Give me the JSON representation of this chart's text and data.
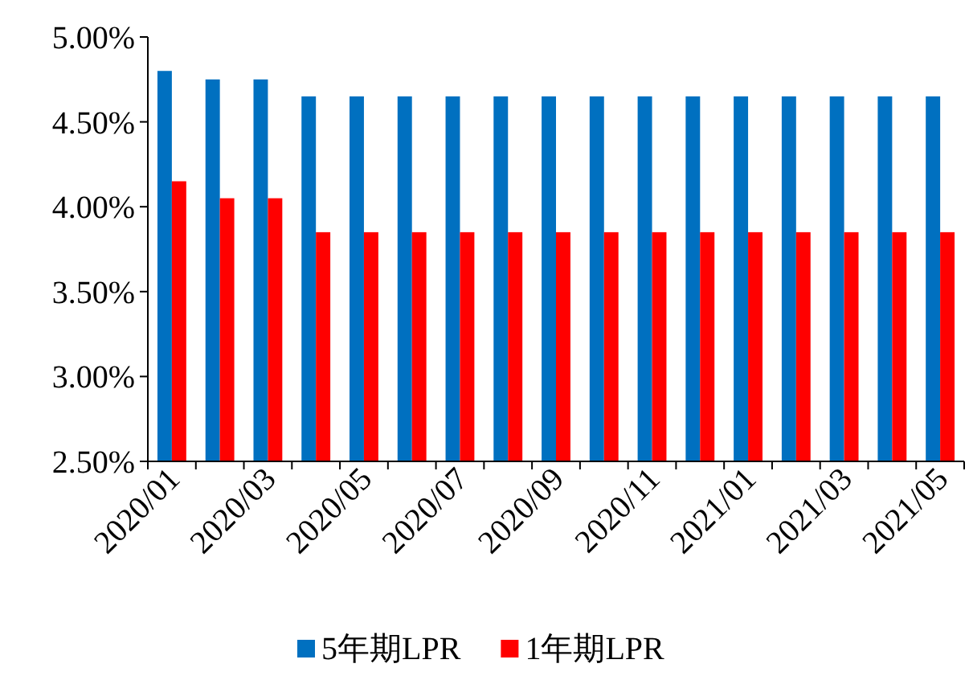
{
  "chart_data": {
    "type": "bar",
    "categories": [
      "2020/01",
      null,
      "2020/03",
      null,
      "2020/05",
      null,
      "2020/07",
      null,
      "2020/09",
      null,
      "2020/11",
      null,
      "2021/01",
      null,
      "2021/03",
      null,
      "2021/05"
    ],
    "series": [
      {
        "name": "5年期LPR",
        "color": "#0070c0",
        "values": [
          4.8,
          4.75,
          4.75,
          4.65,
          4.65,
          4.65,
          4.65,
          4.65,
          4.65,
          4.65,
          4.65,
          4.65,
          4.65,
          4.65,
          4.65,
          4.65,
          4.65
        ]
      },
      {
        "name": "1年期LPR",
        "color": "#ff0000",
        "values": [
          4.15,
          4.05,
          4.05,
          3.85,
          3.85,
          3.85,
          3.85,
          3.85,
          3.85,
          3.85,
          3.85,
          3.85,
          3.85,
          3.85,
          3.85,
          3.85,
          3.85
        ]
      }
    ],
    "ylim": [
      2.5,
      5.0
    ],
    "yticks": [
      {
        "value": 2.5,
        "label": "2.50%"
      },
      {
        "value": 3.0,
        "label": "3.00%"
      },
      {
        "value": 3.5,
        "label": "3.50%"
      },
      {
        "value": 4.0,
        "label": "4.00%"
      },
      {
        "value": 4.5,
        "label": "4.50%"
      },
      {
        "value": 5.0,
        "label": "5.00%"
      }
    ],
    "grid": false,
    "legend": "bottom"
  }
}
